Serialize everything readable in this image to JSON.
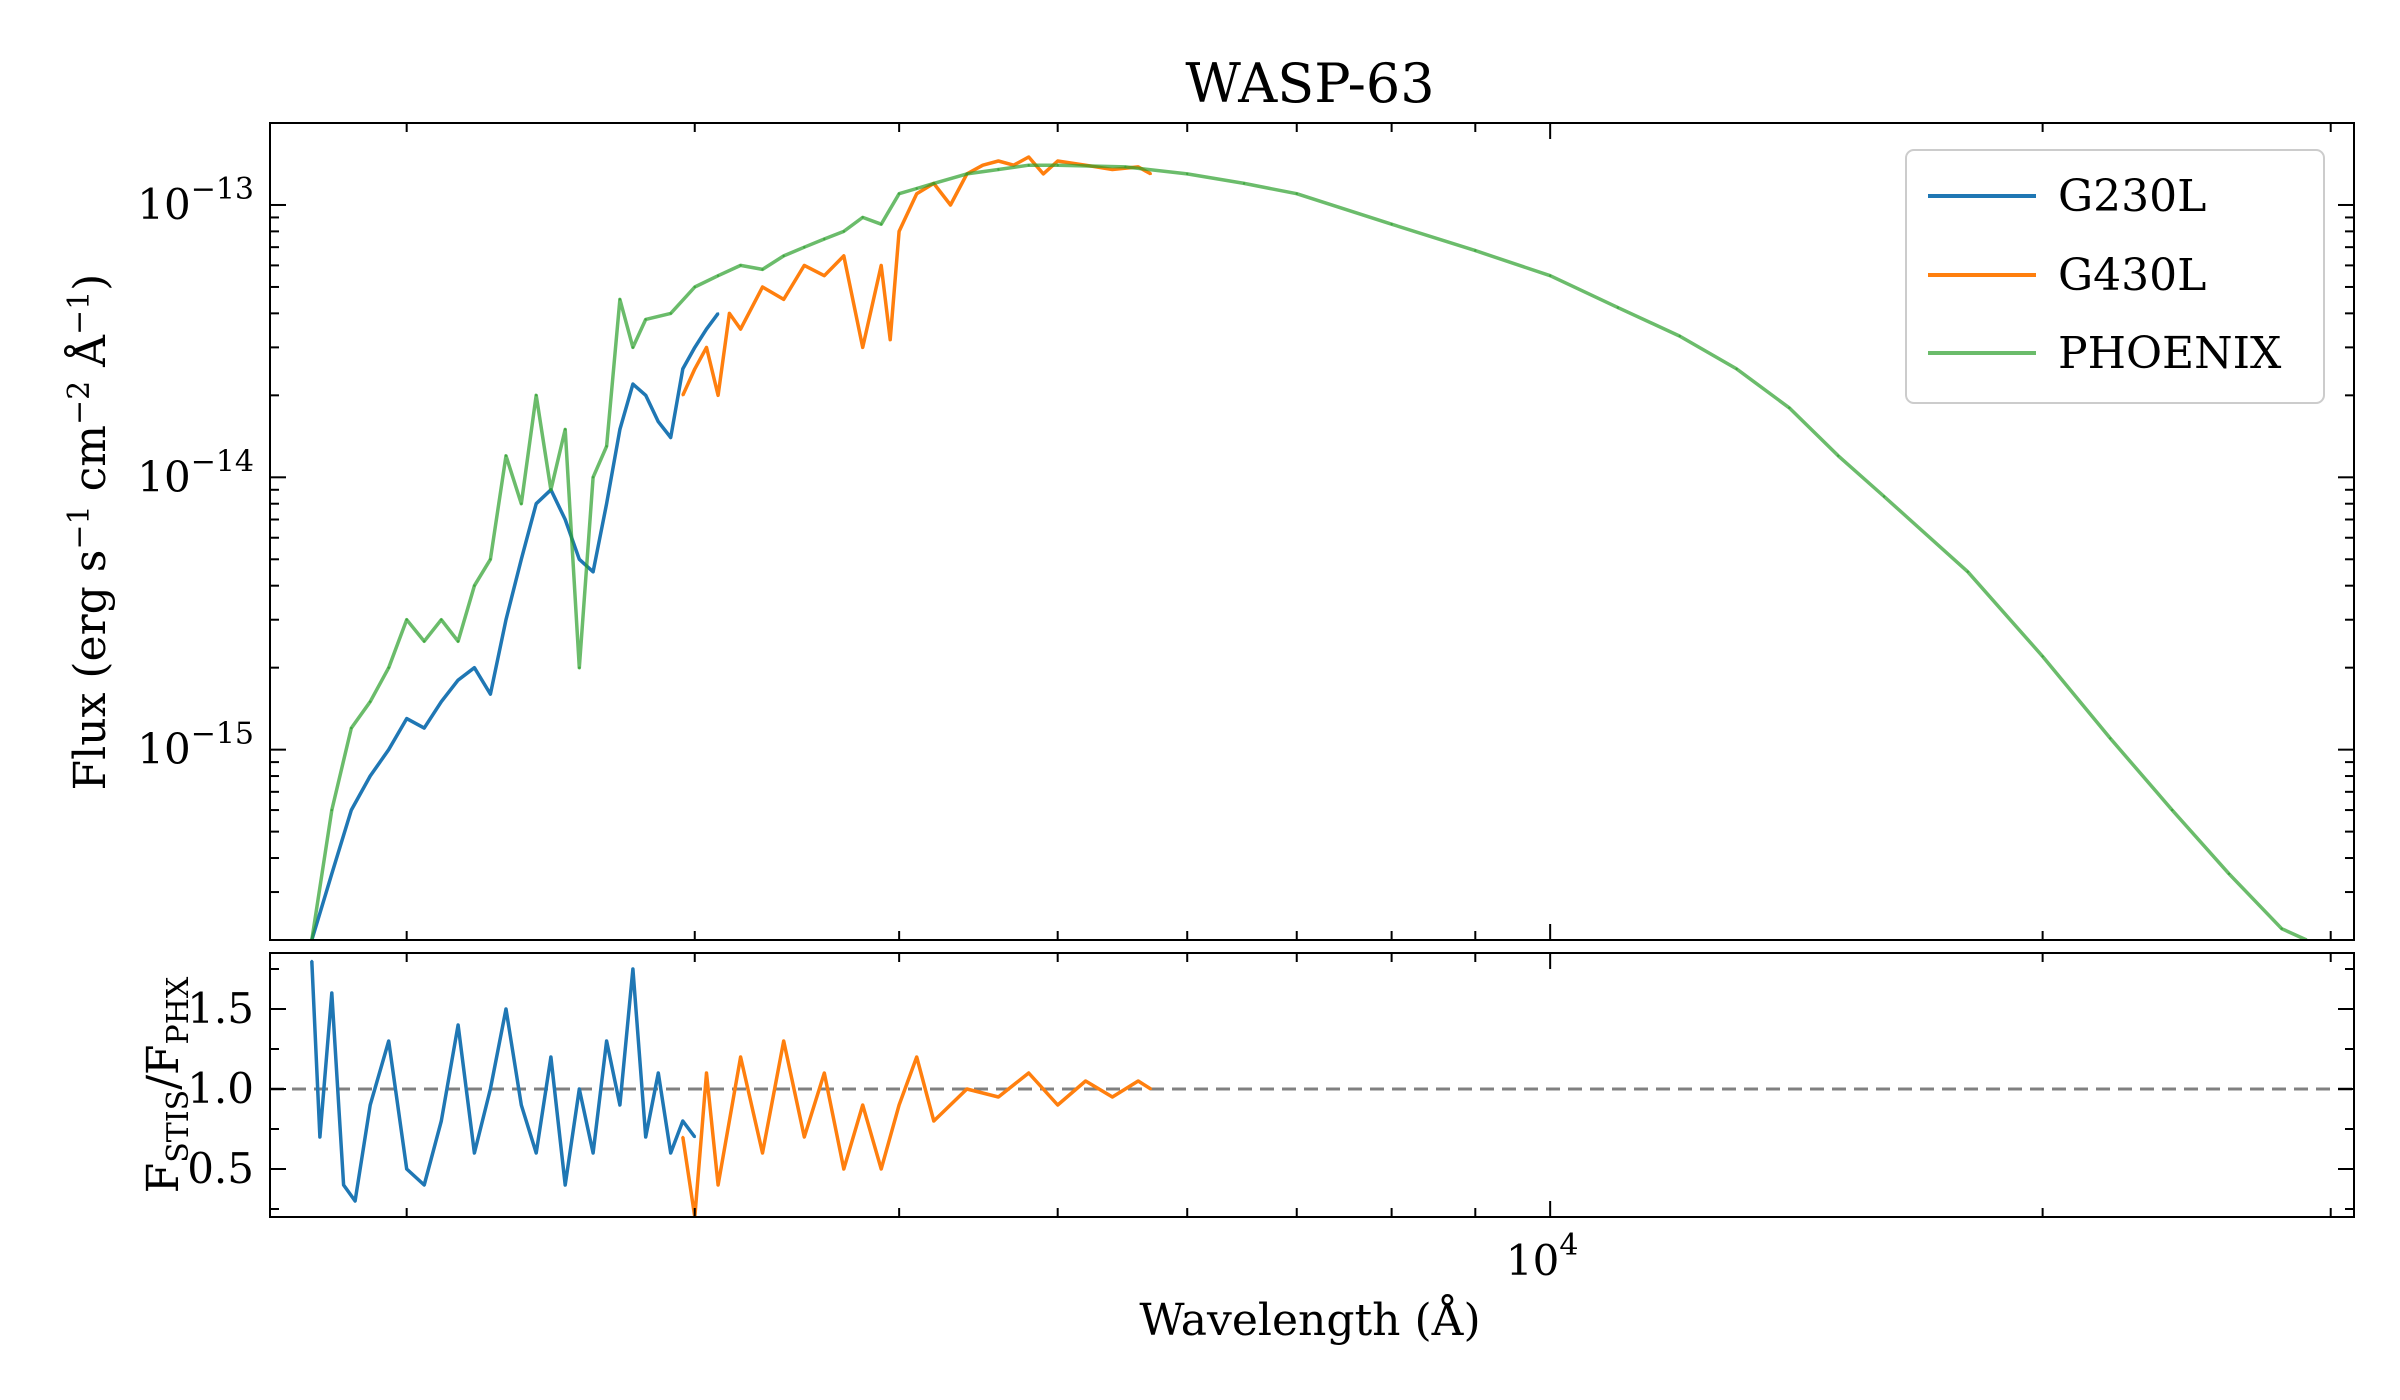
{
  "chart_data": [
    {
      "type": "line",
      "panel": "top",
      "title": "WASP-63",
      "ylabel": "Flux (erg s$^{-1}$ cm$^{-2}$ Å$^{-1}$)",
      "ylabel_parts": {
        "base": "Flux (erg s",
        "e1": "−1",
        "mid1": " cm",
        "e2": "−2",
        "mid2": " Å",
        "e3": "−1",
        "end": ")"
      },
      "yscale": "log",
      "xscale": "log",
      "ylim": [
        2e-16,
        2e-13
      ],
      "xlim": [
        1650,
        31000
      ],
      "yticks": [
        {
          "value": 1e-13,
          "base": "10",
          "exp": "−13"
        },
        {
          "value": 1e-14,
          "base": "10",
          "exp": "−14"
        },
        {
          "value": 1e-15,
          "base": "10",
          "exp": "−15"
        }
      ],
      "legend": {
        "placement": "top-right",
        "entries": [
          "G230L",
          "G430L",
          "PHOENIX"
        ]
      },
      "series": [
        {
          "name": "G230L",
          "color": "#1f77b4",
          "x": [
            1750,
            1800,
            1850,
            1900,
            1950,
            2000,
            2050,
            2100,
            2150,
            2200,
            2250,
            2300,
            2350,
            2400,
            2450,
            2500,
            2550,
            2600,
            2650,
            2700,
            2750,
            2800,
            2850,
            2900,
            2950,
            3000,
            3050,
            3100
          ],
          "y": [
            2e-16,
            3.5e-16,
            6e-16,
            8e-16,
            1e-15,
            1.3e-15,
            1.2e-15,
            1.5e-15,
            1.8e-15,
            2e-15,
            1.6e-15,
            3e-15,
            5e-15,
            8e-15,
            9e-15,
            7e-15,
            5e-15,
            4.5e-15,
            8e-15,
            1.5e-14,
            2.2e-14,
            2e-14,
            1.6e-14,
            1.4e-14,
            2.5e-14,
            3e-14,
            3.5e-14,
            4e-14
          ]
        },
        {
          "name": "G430L",
          "color": "#ff7f0e",
          "x": [
            2950,
            3000,
            3050,
            3100,
            3150,
            3200,
            3300,
            3400,
            3500,
            3600,
            3700,
            3800,
            3900,
            3950,
            4000,
            4100,
            4200,
            4300,
            4400,
            4500,
            4600,
            4700,
            4800,
            4900,
            5000,
            5200,
            5400,
            5600,
            5700
          ],
          "y": [
            2e-14,
            2.5e-14,
            3e-14,
            2e-14,
            4e-14,
            3.5e-14,
            5e-14,
            4.5e-14,
            6e-14,
            5.5e-14,
            6.5e-14,
            3e-14,
            6e-14,
            3.2e-14,
            8e-14,
            1.1e-13,
            1.2e-13,
            1e-13,
            1.3e-13,
            1.4e-13,
            1.45e-13,
            1.4e-13,
            1.5e-13,
            1.3e-13,
            1.45e-13,
            1.4e-13,
            1.35e-13,
            1.38e-13,
            1.3e-13
          ]
        },
        {
          "name": "PHOENIX",
          "color": "#2ca02c",
          "x": [
            1750,
            1800,
            1850,
            1900,
            1950,
            2000,
            2050,
            2100,
            2150,
            2200,
            2250,
            2300,
            2350,
            2400,
            2450,
            2500,
            2550,
            2600,
            2650,
            2700,
            2750,
            2800,
            2900,
            3000,
            3100,
            3200,
            3300,
            3400,
            3500,
            3600,
            3700,
            3800,
            3900,
            4000,
            4100,
            4200,
            4400,
            4600,
            4800,
            5000,
            5500,
            6000,
            6500,
            7000,
            8000,
            9000,
            10000,
            11000,
            12000,
            13000,
            14000,
            15000,
            16000,
            18000,
            20000,
            22000,
            24000,
            26000,
            28000,
            29000
          ],
          "y": [
            2e-16,
            6e-16,
            1.2e-15,
            1.5e-15,
            2e-15,
            3e-15,
            2.5e-15,
            3e-15,
            2.5e-15,
            4e-15,
            5e-15,
            1.2e-14,
            8e-15,
            2e-14,
            9e-15,
            1.5e-14,
            2e-15,
            1e-14,
            1.3e-14,
            4.5e-14,
            3e-14,
            3.8e-14,
            4e-14,
            5e-14,
            5.5e-14,
            6e-14,
            5.8e-14,
            6.5e-14,
            7e-14,
            7.5e-14,
            8e-14,
            9e-14,
            8.5e-14,
            1.1e-13,
            1.15e-13,
            1.2e-13,
            1.3e-13,
            1.35e-13,
            1.4e-13,
            1.4e-13,
            1.38e-13,
            1.3e-13,
            1.2e-13,
            1.1e-13,
            8.5e-14,
            6.8e-14,
            5.5e-14,
            4.2e-14,
            3.3e-14,
            2.5e-14,
            1.8e-14,
            1.2e-14,
            8.5e-15,
            4.5e-15,
            2.2e-15,
            1.1e-15,
            6e-16,
            3.5e-16,
            2.2e-16,
            2e-16
          ]
        }
      ]
    },
    {
      "type": "line",
      "panel": "bottom",
      "xlabel": "Wavelength (Å)",
      "ylabel_parts": {
        "f1": "F",
        "s1": "STIS",
        "slash": "/",
        "f2": "F",
        "s2": "PHX"
      },
      "xscale": "log",
      "xlim": [
        1650,
        31000
      ],
      "ylim": [
        0.2,
        1.85
      ],
      "xticks": [
        {
          "value": 10000,
          "base": "10",
          "exp": "4"
        }
      ],
      "yticks": [
        {
          "value": 0.5,
          "label": "0.5"
        },
        {
          "value": 1.0,
          "label": "1.0"
        },
        {
          "value": 1.5,
          "label": "1.5"
        }
      ],
      "reference_line": {
        "y": 1.0,
        "style": "dashed",
        "color": "#808080"
      },
      "series": [
        {
          "name": "G230L",
          "color": "#1f77b4",
          "x": [
            1750,
            1770,
            1800,
            1830,
            1860,
            1900,
            1950,
            2000,
            2050,
            2100,
            2150,
            2200,
            2250,
            2300,
            2350,
            2400,
            2450,
            2500,
            2550,
            2600,
            2650,
            2700,
            2750,
            2800,
            2850,
            2900,
            2950,
            3000
          ],
          "y": [
            1.8,
            0.7,
            1.6,
            0.4,
            0.3,
            0.9,
            1.3,
            0.5,
            0.4,
            0.8,
            1.4,
            0.6,
            1.0,
            1.5,
            0.9,
            0.6,
            1.2,
            0.4,
            1.0,
            0.6,
            1.3,
            0.9,
            1.75,
            0.7,
            1.1,
            0.6,
            0.8,
            0.7
          ]
        },
        {
          "name": "G430L",
          "color": "#ff7f0e",
          "x": [
            2950,
            3000,
            3050,
            3100,
            3200,
            3300,
            3400,
            3500,
            3600,
            3700,
            3800,
            3900,
            4000,
            4100,
            4200,
            4400,
            4600,
            4800,
            5000,
            5200,
            5400,
            5600,
            5700
          ],
          "y": [
            0.7,
            0.2,
            1.1,
            0.4,
            1.2,
            0.6,
            1.3,
            0.7,
            1.1,
            0.5,
            0.9,
            0.5,
            0.9,
            1.2,
            0.8,
            1.0,
            0.95,
            1.1,
            0.9,
            1.05,
            0.95,
            1.05,
            1.0
          ]
        }
      ]
    }
  ]
}
